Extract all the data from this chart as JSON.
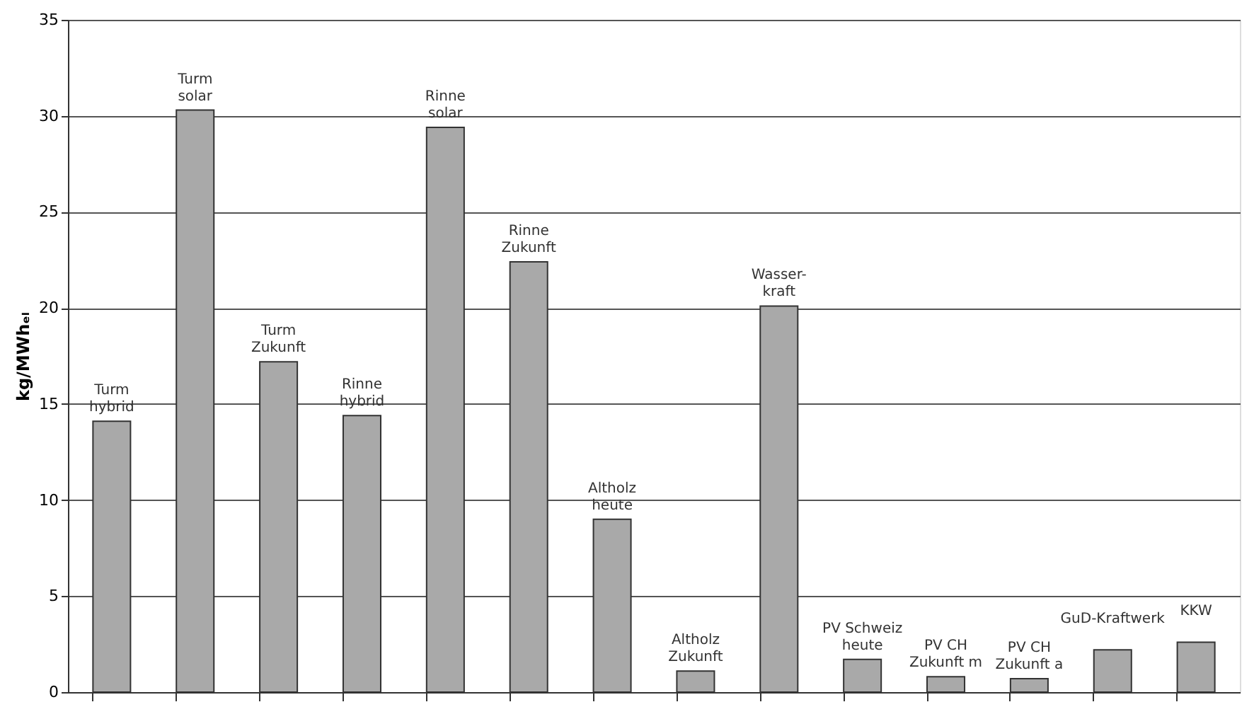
{
  "chart_data": {
    "type": "bar",
    "ylabel": "kg/MWhₑₗ",
    "categories": [
      "Turm\nhybrid",
      "Turm\nsolar",
      "Turm\nZukunft",
      "Rinne\nhybrid",
      "Rinne\nsolar",
      "Rinne\nZukunft",
      "Altholz\nheute",
      "Altholz\nZukunft",
      "Wasser-\nkraft",
      "PV Schweiz\nheute",
      "PV CH\nZukunft m",
      "PV CH\nZukunft a",
      "GuD-Kraftwerk",
      "KKW"
    ],
    "values": [
      14.1,
      30.3,
      17.2,
      14.4,
      29.4,
      22.4,
      9.0,
      1.1,
      20.1,
      1.7,
      0.8,
      0.7,
      2.2,
      2.6
    ],
    "color": "#a9a9a9",
    "ylim": [
      0,
      35
    ],
    "yticks": [
      0,
      5,
      10,
      15,
      20,
      25,
      30,
      35
    ],
    "grid": "y"
  }
}
